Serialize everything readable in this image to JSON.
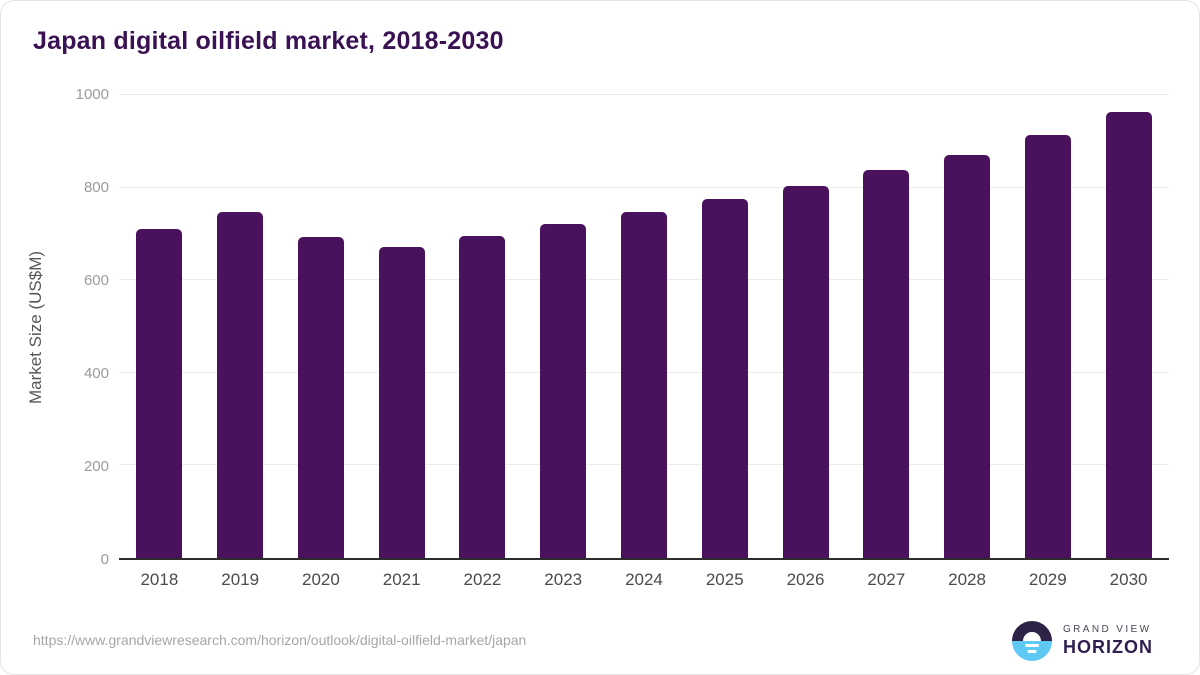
{
  "header": {
    "title": "Japan digital oilfield market, 2018-2030"
  },
  "footer": {
    "source_url": "https://www.grandviewresearch.com/horizon/outlook/digital-oilfield-market/japan",
    "logo": {
      "line1": "GRAND VIEW",
      "line2": "HORIZON"
    }
  },
  "colors": {
    "bar": "#4a115c",
    "title": "#3a1253",
    "gridline": "#ebebeb",
    "axis_line": "#2d2d2d",
    "y_tick_label": "#9b9b9b",
    "x_tick_label": "#4b4b4b",
    "logo_dark": "#2e2247",
    "logo_blue": "#5ec9f2"
  },
  "chart_data": {
    "type": "bar",
    "title": "Japan digital oilfield market, 2018-2030",
    "categories": [
      "2018",
      "2019",
      "2020",
      "2021",
      "2022",
      "2023",
      "2024",
      "2025",
      "2026",
      "2027",
      "2028",
      "2029",
      "2030"
    ],
    "values": [
      710,
      748,
      693,
      672,
      695,
      722,
      748,
      776,
      804,
      837,
      870,
      914,
      963
    ],
    "xlabel": "",
    "ylabel": "Market Size (US$M)",
    "ylim": [
      0,
      1000
    ],
    "yticks": [
      0,
      200,
      400,
      600,
      800,
      1000
    ],
    "grid": true,
    "legend": false,
    "bar_color": "#4a115c"
  }
}
